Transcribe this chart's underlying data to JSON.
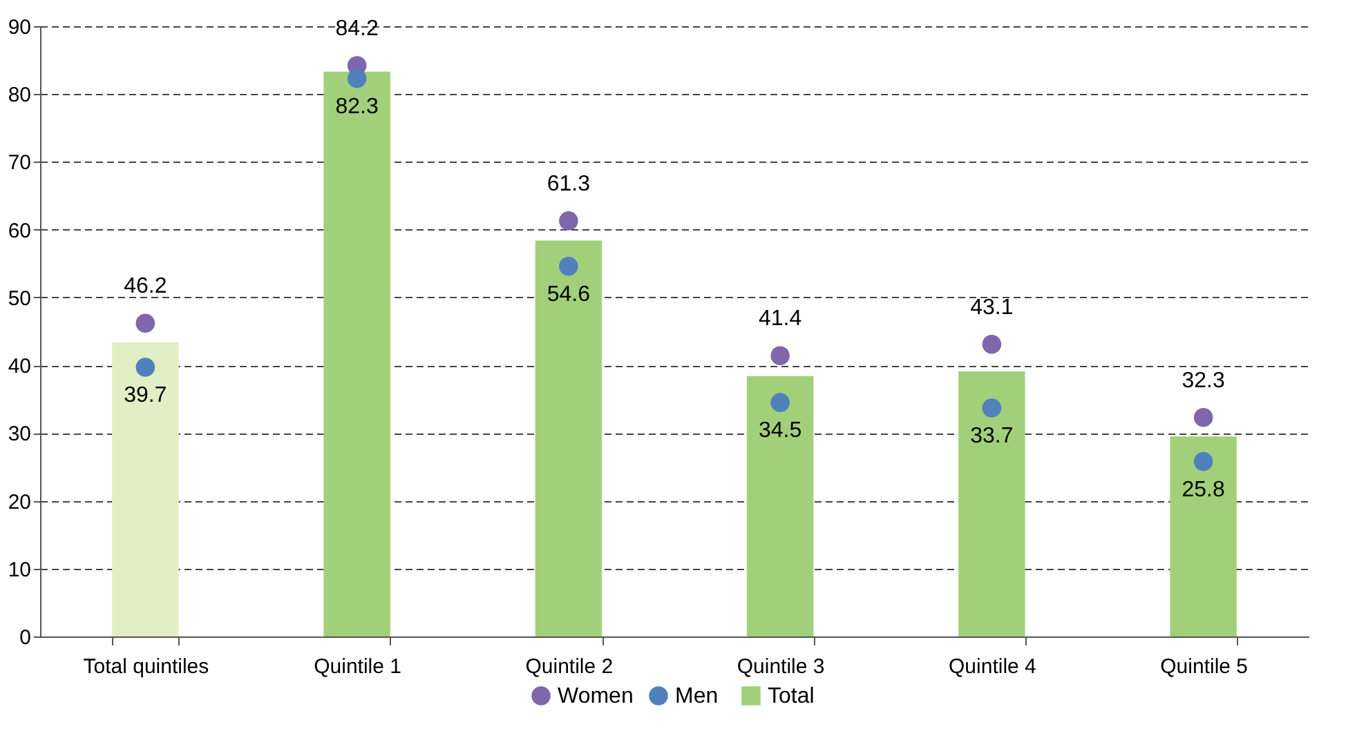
{
  "chart_data": {
    "type": "bar",
    "categories": [
      "Total quintiles",
      "Quintile 1",
      "Quintile 2",
      "Quintile 3",
      "Quintile 4",
      "Quintile 5"
    ],
    "series": [
      {
        "name": "Women",
        "type": "scatter",
        "color": "#8066ac",
        "values": [
          46.2,
          84.2,
          61.3,
          41.4,
          43.1,
          32.3
        ],
        "value_labels": [
          "46.2",
          "84.2",
          "61.3",
          "41.4",
          "43.1",
          "32.3"
        ]
      },
      {
        "name": "Men",
        "type": "scatter",
        "color": "#4f81bd",
        "values": [
          39.7,
          82.3,
          54.6,
          34.5,
          33.7,
          25.8
        ],
        "value_labels": [
          "39.7",
          "82.3",
          "54.6",
          "34.5",
          "33.7",
          "25.8"
        ]
      },
      {
        "name": "Total",
        "color": "#a2d07a",
        "colors": [
          "#e2efc5",
          "#a2d07a",
          "#a2d07a",
          "#a2d07a",
          "#a2d07a",
          "#a2d07a"
        ],
        "values": [
          43.4,
          83.3,
          58.4,
          38.4,
          39.1,
          29.5
        ]
      }
    ],
    "ylim": [
      0,
      90
    ],
    "yticks": [
      0,
      10,
      20,
      30,
      40,
      50,
      60,
      70,
      80,
      90
    ],
    "grid": "y",
    "legend": "bottom",
    "marker": "circle"
  }
}
